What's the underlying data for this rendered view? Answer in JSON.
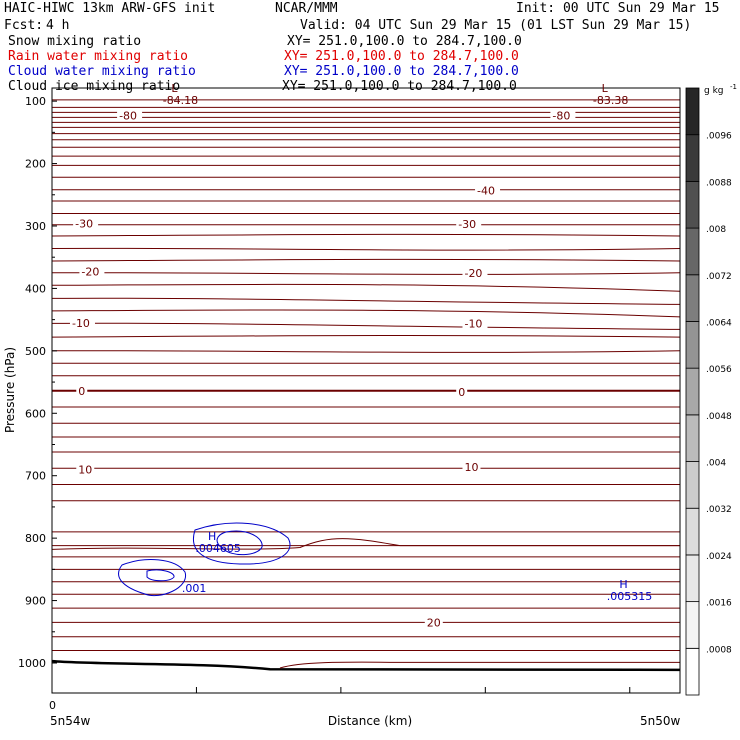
{
  "header": {
    "model": "HAIC-HIWC 13km ARW-GFS init",
    "org": "NCAR/MMM",
    "init": "Init: 00 UTC Sun 29 Mar 15",
    "fcst_label": "Fcst:",
    "fcst_value": "4 h",
    "valid": "Valid: 04 UTC Sun 29 Mar 15 (01 LST Sun 29 Mar 15)",
    "fields": [
      {
        "name": "Snow mixing ratio",
        "xy": "XY= 251.0,100.0 to 284.7,100.0",
        "color": "#000000"
      },
      {
        "name": "Rain water mixing ratio",
        "xy": "XY= 251.0,100.0 to 284.7,100.0",
        "color": "#e00000"
      },
      {
        "name": "Cloud water mixing ratio",
        "xy": "XY= 251.0,100.0 to 284.7,100.0",
        "color": "#0000c8"
      },
      {
        "name": "Cloud ice mixing ratio",
        "xy": "XY= 251.0,100.0 to 284.7,100.0",
        "color": "#000000"
      }
    ]
  },
  "chart_data": {
    "type": "contour",
    "ylabel": "Pressure (hPa)",
    "xlabel": "Distance (km)",
    "x_start_label": "5n54w",
    "x_end_label": "5n50w",
    "x_origin_label": "0",
    "y_ticks": [
      100,
      200,
      300,
      400,
      500,
      600,
      700,
      800,
      900,
      1000
    ],
    "ylim": [
      1050,
      50
    ],
    "colorbar": {
      "unit": "g kg",
      "unit_exp": "-1",
      "levels": [
        ".0008",
        ".0016",
        ".0024",
        ".0032",
        ".004",
        ".0048",
        ".0056",
        ".0064",
        ".0072",
        ".008",
        ".0088",
        ".0096"
      ],
      "colors": [
        "#ffffff",
        "#f4f4f4",
        "#e8e8e8",
        "#dcdcdc",
        "#cccccc",
        "#bbbbbb",
        "#a8a8a8",
        "#949494",
        "#7e7e7e",
        "#676767",
        "#505050",
        "#3a3a3a",
        "#262626"
      ]
    },
    "temperature_contours": {
      "color": "#6b0000",
      "labels": [
        {
          "text": "-80",
          "x": 0.11,
          "p": 123
        },
        {
          "text": "-80",
          "x": 0.8,
          "p": 123
        },
        {
          "text": "-40",
          "x": 0.68,
          "p": 243
        },
        {
          "text": "-30",
          "x": 0.04,
          "p": 296
        },
        {
          "text": "-30",
          "x": 0.65,
          "p": 297
        },
        {
          "text": "-20",
          "x": 0.05,
          "p": 373
        },
        {
          "text": "-20",
          "x": 0.66,
          "p": 375
        },
        {
          "text": "-10",
          "x": 0.035,
          "p": 455
        },
        {
          "text": "-10",
          "x": 0.66,
          "p": 456
        },
        {
          "text": "0",
          "x": 0.045,
          "p": 564
        },
        {
          "text": "0",
          "x": 0.65,
          "p": 566
        },
        {
          "text": "10",
          "x": 0.045,
          "p": 690
        },
        {
          "text": "10",
          "x": 0.66,
          "p": 686
        },
        {
          "text": "20",
          "x": 0.6,
          "p": 935
        }
      ]
    },
    "extrema": [
      {
        "type": "L",
        "value": "-84.18",
        "x": 0.195,
        "p": 85,
        "color": "#6b0000"
      },
      {
        "type": "L",
        "value": "-83.38",
        "x": 0.88,
        "p": 85,
        "color": "#6b0000"
      },
      {
        "type": "H",
        "value": ".004605",
        "x": 0.255,
        "p": 803,
        "color": "#0000c8"
      },
      {
        "type": "H",
        "value": ".005315",
        "x": 0.91,
        "p": 880,
        "color": "#0000c8"
      }
    ],
    "cloud_water_contours": {
      "color": "#0000c8",
      "labels": [
        {
          "text": ".001",
          "x": 0.21,
          "p": 880
        }
      ]
    }
  }
}
